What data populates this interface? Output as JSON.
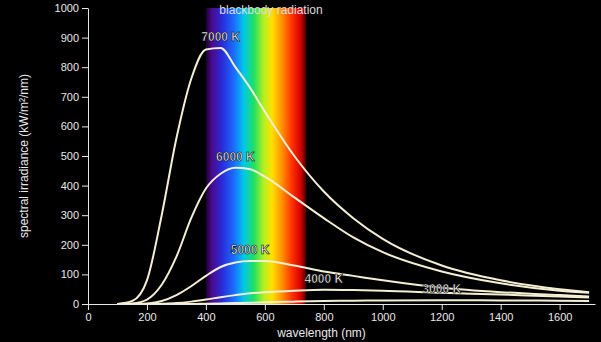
{
  "chart_data": {
    "type": "line",
    "title": "blackbody radiation",
    "x_label": "wavelength (nm)",
    "y_label": "spectral irradiance (kW/m²/nm)",
    "x": [
      100,
      150,
      200,
      250,
      300,
      350,
      400,
      450,
      500,
      550,
      600,
      700,
      800,
      900,
      1000,
      1200,
      1400,
      1600,
      1700
    ],
    "series": [
      {
        "name": "7000 K",
        "color": "#f4efd2",
        "values": [
          0,
          10,
          80,
          300,
          560,
          760,
          860,
          865,
          800,
          730,
          650,
          500,
          380,
          290,
          220,
          130,
          80,
          50,
          40
        ]
      },
      {
        "name": "6000 K",
        "color": "#f4efd2",
        "values": [
          0,
          2,
          15,
          65,
          160,
          290,
          390,
          440,
          460,
          455,
          430,
          360,
          290,
          225,
          175,
          110,
          70,
          45,
          38
        ]
      },
      {
        "name": "5000 K",
        "color": "#f4efd2",
        "values": [
          0,
          0,
          2,
          10,
          30,
          60,
          95,
          125,
          140,
          145,
          145,
          130,
          110,
          95,
          80,
          55,
          40,
          30,
          25
        ]
      },
      {
        "name": "4000 K",
        "color": "#f4efd2",
        "values": [
          0,
          0,
          0,
          1,
          3,
          8,
          15,
          23,
          30,
          36,
          40,
          45,
          48,
          47,
          45,
          38,
          32,
          25,
          22
        ]
      },
      {
        "name": "3000 K",
        "color": "#f4efd2",
        "values": [
          0,
          0,
          0,
          0,
          0,
          0,
          1,
          2,
          3,
          4,
          6,
          8,
          10,
          11,
          12,
          13,
          12,
          11,
          10
        ]
      }
    ],
    "visible_band": [
      400,
      740
    ],
    "xlim": [
      0,
      1720
    ],
    "xticks": [
      0,
      200,
      400,
      600,
      800,
      1000,
      1200,
      1400,
      1600
    ],
    "ylim": [
      0,
      1000
    ],
    "yticks": [
      0,
      100,
      200,
      300,
      400,
      500,
      600,
      700,
      800,
      900,
      1000
    ],
    "grid": false,
    "legend": false,
    "data_labels": false
  }
}
